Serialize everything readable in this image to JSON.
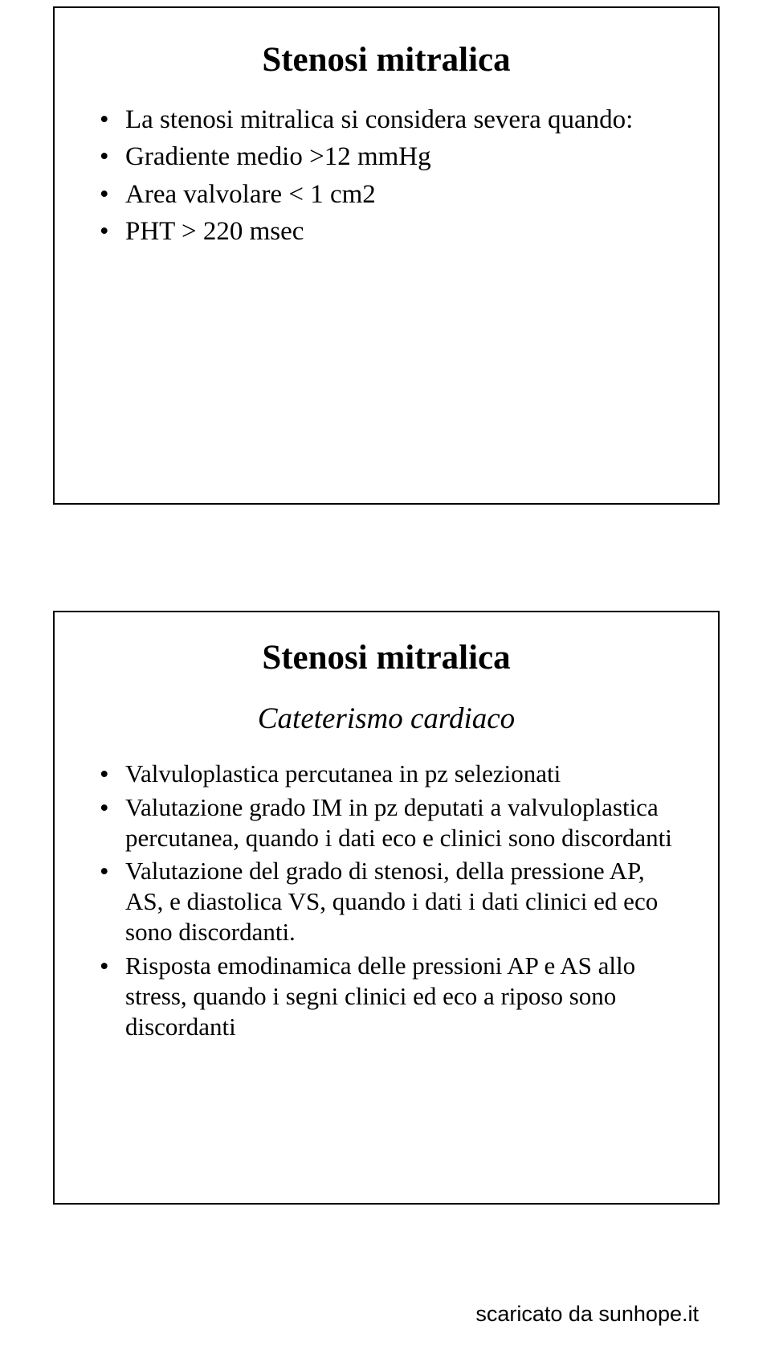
{
  "slide1": {
    "title": "Stenosi mitralica",
    "bullets": [
      "La stenosi mitralica si considera severa quando:",
      "Gradiente medio >12 mmHg",
      "Area valvolare < 1 cm2",
      "PHT > 220 msec"
    ]
  },
  "slide2": {
    "title": "Stenosi mitralica",
    "subtitle": "Cateterismo cardiaco",
    "bullets": [
      "Valvuloplastica percutanea in pz selezionati",
      "Valutazione grado IM in pz deputati a valvuloplastica percutanea, quando i dati eco e clinici sono discordanti",
      "Valutazione del grado di stenosi, della pressione AP, AS, e diastolica VS, quando i dati i dati clinici ed eco sono discordanti.",
      "Risposta emodinamica delle pressioni AP e AS allo stress, quando i segni clinici ed eco a riposo sono discordanti"
    ]
  },
  "footer": "scaricato da sunhope.it"
}
